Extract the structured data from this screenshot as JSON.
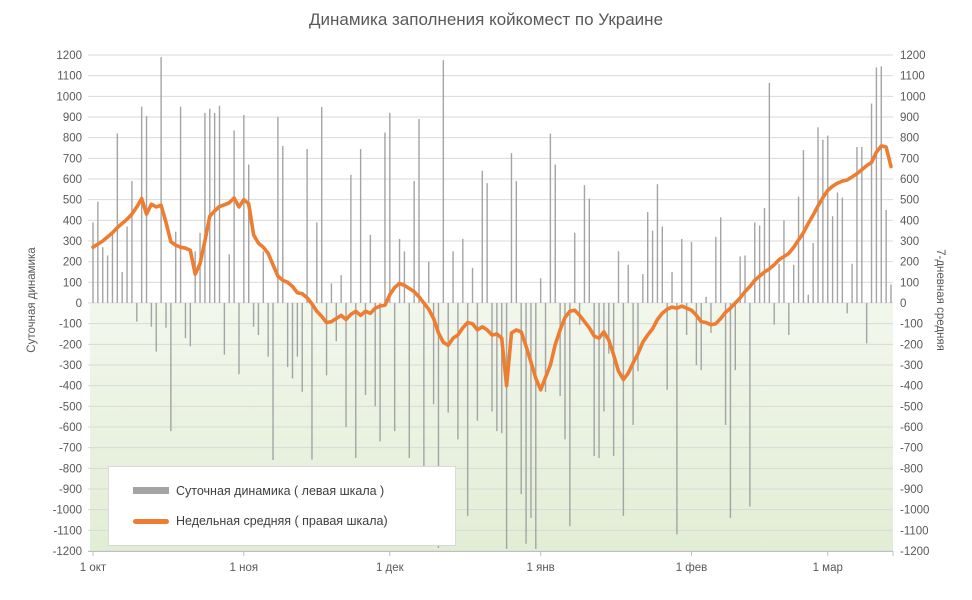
{
  "title": "Динамика заполнения койкомест по Украине",
  "axes": {
    "left_title": "Суточная динамика",
    "right_title": "7-дневная средняя",
    "y_min": -1200,
    "y_max": 1200,
    "y_step": 100,
    "x_ticks": [
      {
        "label": "1 окт",
        "day": 0
      },
      {
        "label": "1 ноя",
        "day": 31
      },
      {
        "label": "1 дек",
        "day": 61
      },
      {
        "label": "1 янв",
        "day": 92
      },
      {
        "label": "1 фев",
        "day": 123
      },
      {
        "label": "1 мар",
        "day": 151
      }
    ]
  },
  "legend": [
    {
      "label": "Суточная динамика ( левая шкала )",
      "type": "bar",
      "color": "#a4a4a4"
    },
    {
      "label": "Недельная средняя ( правая шкала)",
      "type": "line",
      "color": "#ed7d31"
    }
  ],
  "colors": {
    "bar": "#a4a4a4",
    "line": "#ed7d31",
    "grid": "#d9d9d9",
    "axis": "#bfbfbf",
    "tick_text": "#595959",
    "green_top": "#f2f7ec",
    "green_bottom": "#e2edd5"
  },
  "chart_data": {
    "type": "bar",
    "combo": "bar+line",
    "x_unit": "days from 1 окт to 14 мар",
    "title": "Динамика заполнения койкомест по Украине",
    "ylabel_left": "Суточная динамика",
    "ylabel_right": "7-дневная средняя",
    "ylim": [
      -1200,
      1200
    ],
    "grid": true,
    "legend_position": "bottom-left inside plot",
    "series": [
      {
        "name": "Суточная динамика",
        "type": "bar",
        "axis": "left",
        "color": "#a4a4a4",
        "values": [
          390,
          490,
          270,
          230,
          345,
          820,
          150,
          370,
          590,
          -90,
          950,
          905,
          -115,
          -235,
          1190,
          -120,
          -620,
          345,
          950,
          -170,
          -210,
          250,
          340,
          920,
          940,
          920,
          955,
          -250,
          235,
          835,
          -345,
          910,
          670,
          -115,
          -155,
          250,
          -260,
          -760,
          900,
          760,
          -310,
          -365,
          -260,
          -430,
          745,
          -758,
          390,
          948,
          -350,
          95,
          -185,
          135,
          -600,
          620,
          -750,
          745,
          -445,
          330,
          -500,
          -670,
          825,
          920,
          -620,
          310,
          250,
          -750,
          590,
          890,
          -810,
          200,
          -490,
          -1185,
          1175,
          -530,
          250,
          -660,
          310,
          -1030,
          170,
          -570,
          640,
          580,
          -525,
          -620,
          -630,
          -1190,
          725,
          590,
          -925,
          -1165,
          -1040,
          -1190,
          120,
          -430,
          820,
          670,
          -450,
          -660,
          -1080,
          340,
          -105,
          570,
          505,
          -740,
          -750,
          -525,
          -245,
          -740,
          250,
          -1030,
          185,
          -590,
          -330,
          140,
          440,
          350,
          575,
          370,
          -420,
          150,
          -1120,
          310,
          -155,
          295,
          -300,
          -325,
          30,
          -145,
          320,
          415,
          -590,
          -1040,
          -325,
          225,
          230,
          -985,
          390,
          375,
          460,
          1065,
          -105,
          190,
          400,
          -155,
          185,
          515,
          740,
          40,
          290,
          850,
          790,
          810,
          420,
          535,
          510,
          -50,
          190,
          755,
          755,
          -195,
          965,
          1140,
          1145,
          450,
          90
        ]
      },
      {
        "name": "Недельная средняя",
        "type": "line",
        "axis": "right",
        "color": "#ed7d31",
        "values": [
          270,
          285,
          300,
          320,
          340,
          365,
          385,
          405,
          430,
          465,
          505,
          430,
          478,
          465,
          473,
          390,
          296,
          280,
          270,
          265,
          255,
          140,
          190,
          300,
          420,
          445,
          467,
          475,
          485,
          508,
          465,
          500,
          480,
          330,
          290,
          270,
          240,
          185,
          130,
          110,
          100,
          80,
          50,
          45,
          25,
          -5,
          -40,
          -65,
          -95,
          -90,
          -75,
          -60,
          -80,
          -55,
          -40,
          -60,
          -40,
          -50,
          -25,
          -15,
          -10,
          40,
          75,
          95,
          85,
          70,
          55,
          30,
          0,
          -30,
          -75,
          -145,
          -190,
          -205,
          -170,
          -155,
          -120,
          -95,
          -100,
          -130,
          -115,
          -130,
          -155,
          -150,
          -170,
          -400,
          -145,
          -130,
          -140,
          -210,
          -285,
          -365,
          -420,
          -360,
          -300,
          -200,
          -130,
          -70,
          -40,
          -35,
          -60,
          -90,
          -120,
          -160,
          -170,
          -140,
          -180,
          -250,
          -330,
          -370,
          -340,
          -290,
          -245,
          -190,
          -155,
          -125,
          -80,
          -50,
          -30,
          -20,
          -25,
          -15,
          -25,
          -35,
          -60,
          -90,
          -95,
          -105,
          -100,
          -75,
          -45,
          -25,
          0,
          25,
          55,
          80,
          110,
          130,
          150,
          165,
          185,
          210,
          225,
          240,
          270,
          305,
          340,
          385,
          425,
          470,
          510,
          545,
          565,
          580,
          590,
          595,
          610,
          625,
          645,
          665,
          680,
          730,
          760,
          755,
          660
        ]
      }
    ]
  }
}
